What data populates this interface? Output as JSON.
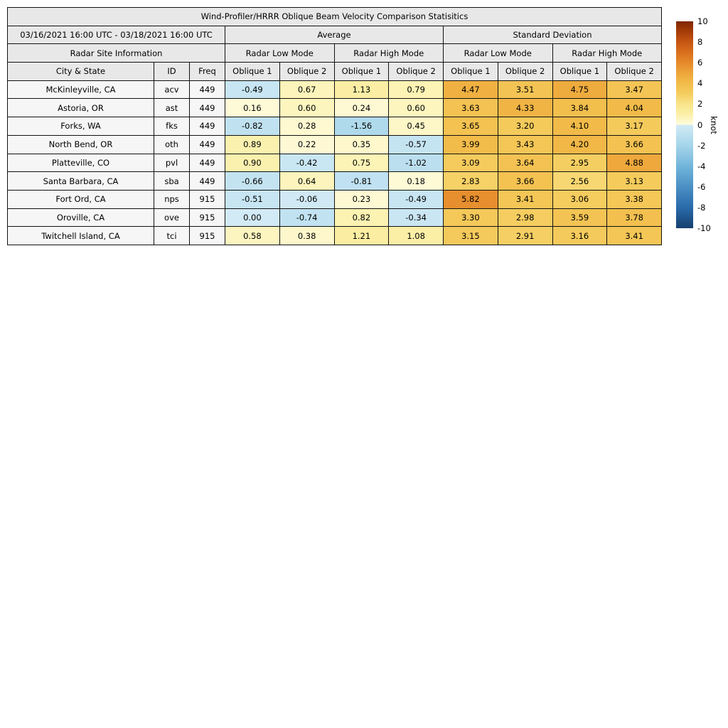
{
  "title": "Wind-Profiler/HRRR Oblique Beam Velocity Comparison Statisitics",
  "date_range": "03/16/2021 16:00 UTC - 03/18/2021 16:00 UTC",
  "groups": {
    "average": "Average",
    "std": "Standard Deviation"
  },
  "subgroups": {
    "site": "Radar Site Information",
    "low": "Radar Low Mode",
    "high": "Radar High Mode"
  },
  "columns": {
    "city": "City & State",
    "id": "ID",
    "freq": "Freq",
    "oblique1": "Oblique 1",
    "oblique2": "Oblique 2"
  },
  "colors": {
    "header_bg": "#e8e8e8",
    "site_bg": "#f6f6f6",
    "border": "#111111"
  },
  "chart_data": {
    "type": "heatmap",
    "title": "Wind-Profiler/HRRR Oblique Beam Velocity Comparison Statisitics",
    "column_groups": [
      "Average / Radar Low Mode",
      "Average / Radar High Mode",
      "Standard Deviation / Radar Low Mode",
      "Standard Deviation / Radar High Mode"
    ],
    "value_columns": [
      "Oblique 1",
      "Oblique 2",
      "Oblique 1",
      "Oblique 2",
      "Oblique 1",
      "Oblique 2",
      "Oblique 1",
      "Oblique 2"
    ],
    "rows": [
      {
        "city": "McKinleyville, CA",
        "id": "acv",
        "freq": "449",
        "values": [
          "-0.49",
          "0.67",
          "1.13",
          "0.79",
          "4.47",
          "3.51",
          "4.75",
          "3.47"
        ]
      },
      {
        "city": "Astoria, OR",
        "id": "ast",
        "freq": "449",
        "values": [
          "0.16",
          "0.60",
          "0.24",
          "0.60",
          "3.63",
          "4.33",
          "3.84",
          "4.04"
        ]
      },
      {
        "city": "Forks, WA",
        "id": "fks",
        "freq": "449",
        "values": [
          "-0.82",
          "0.28",
          "-1.56",
          "0.45",
          "3.65",
          "3.20",
          "4.10",
          "3.17"
        ]
      },
      {
        "city": "North Bend, OR",
        "id": "oth",
        "freq": "449",
        "values": [
          "0.89",
          "0.22",
          "0.35",
          "-0.57",
          "3.99",
          "3.43",
          "4.20",
          "3.66"
        ]
      },
      {
        "city": "Platteville, CO",
        "id": "pvl",
        "freq": "449",
        "values": [
          "0.90",
          "-0.42",
          "0.75",
          "-1.02",
          "3.09",
          "3.64",
          "2.95",
          "4.88"
        ]
      },
      {
        "city": "Santa Barbara, CA",
        "id": "sba",
        "freq": "449",
        "values": [
          "-0.66",
          "0.64",
          "-0.81",
          "0.18",
          "2.83",
          "3.66",
          "2.56",
          "3.13"
        ]
      },
      {
        "city": "Fort Ord, CA",
        "id": "nps",
        "freq": "915",
        "values": [
          "-0.51",
          "-0.06",
          "0.23",
          "-0.49",
          "5.82",
          "3.41",
          "3.06",
          "3.38"
        ]
      },
      {
        "city": "Oroville, CA",
        "id": "ove",
        "freq": "915",
        "values": [
          "0.00",
          "-0.74",
          "0.82",
          "-0.34",
          "3.30",
          "2.98",
          "3.59",
          "3.78"
        ]
      },
      {
        "city": "Twitchell Island, CA",
        "id": "tci",
        "freq": "915",
        "values": [
          "0.58",
          "0.38",
          "1.21",
          "1.08",
          "3.15",
          "2.91",
          "3.16",
          "3.41"
        ]
      }
    ],
    "colorbar": {
      "label": "knot",
      "min": -10,
      "max": 10,
      "ticks": [
        10,
        8,
        6,
        4,
        2,
        0,
        -2,
        -4,
        -6,
        -8,
        -10
      ],
      "positive_stops": [
        [
          0,
          "#fffce0"
        ],
        [
          1,
          "#fbf0a8"
        ],
        [
          2,
          "#f9e48b"
        ],
        [
          3,
          "#f5cd5f"
        ],
        [
          4,
          "#f2bc4a"
        ],
        [
          5,
          "#eda53a"
        ],
        [
          6,
          "#e68a2b"
        ],
        [
          7,
          "#d96f1d"
        ],
        [
          8,
          "#c65612"
        ],
        [
          9,
          "#a63c08"
        ],
        [
          10,
          "#7f2704"
        ]
      ],
      "negative_stops": [
        [
          0,
          "#d2eaf5"
        ],
        [
          2,
          "#a5d5ea"
        ],
        [
          4,
          "#72b5db"
        ],
        [
          6,
          "#4a90c4"
        ],
        [
          8,
          "#2a6aab"
        ],
        [
          10,
          "#16406f"
        ]
      ]
    }
  }
}
